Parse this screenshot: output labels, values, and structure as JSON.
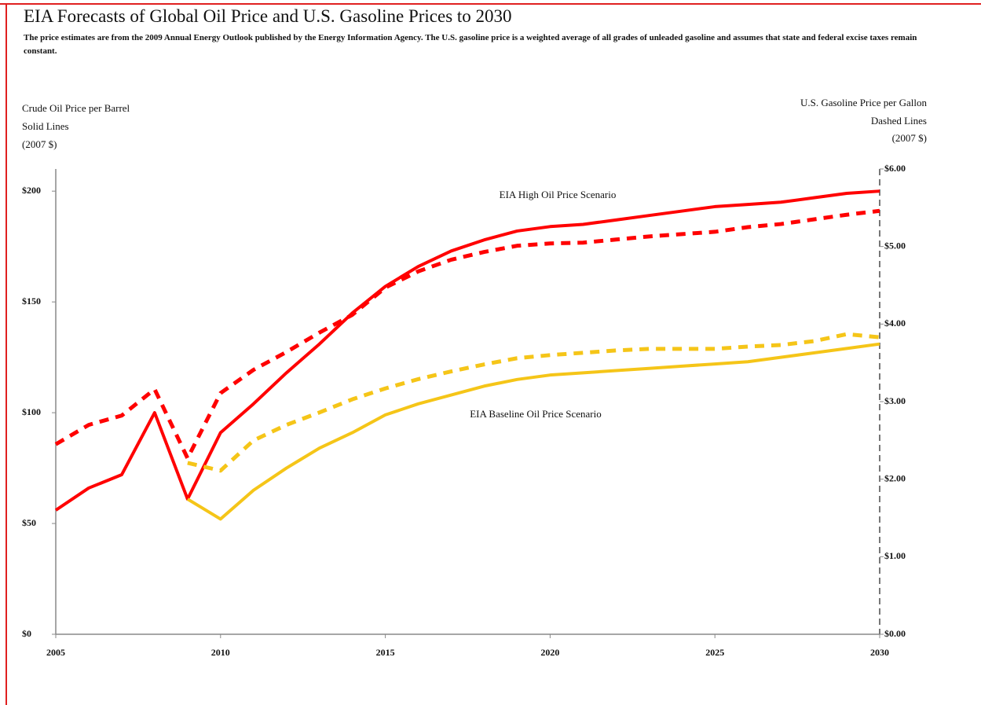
{
  "chart_data": {
    "type": "line",
    "title": "EIA Forecasts of Global Oil Price and U.S. Gasoline Prices to 2030",
    "subtitle": "The price estimates are from the 2009 Annual Energy Outlook published by the Energy Information Agency. The U.S. gasoline price is a weighted average of all grades of unleaded gasoline and assumes that state and federal excise taxes remain constant.",
    "y_label": [
      "Crude Oil Price per Barrel",
      "Solid Lines",
      "(2007 $)"
    ],
    "y2_label": [
      "U.S. Gasoline Price per Gallon",
      "Dashed Lines",
      "(2007 $)"
    ],
    "annotations": [
      "EIA High Oil Price Scenario",
      "EIA Baseline Oil Price Scenario"
    ],
    "x": [
      2005,
      2006,
      2007,
      2008,
      2009,
      2010,
      2011,
      2012,
      2013,
      2014,
      2015,
      2016,
      2017,
      2018,
      2019,
      2020,
      2021,
      2022,
      2023,
      2024,
      2025,
      2026,
      2027,
      2028,
      2029,
      2030
    ],
    "xlim": [
      2005,
      2030
    ],
    "xticks": [
      2005,
      2010,
      2015,
      2020,
      2025,
      2030
    ],
    "ylim": [
      0,
      210
    ],
    "yticks": [
      {
        "value": 0,
        "label": "$0"
      },
      {
        "value": 50,
        "label": "$50"
      },
      {
        "value": 100,
        "label": "$100"
      },
      {
        "value": 150,
        "label": "$150"
      },
      {
        "value": 200,
        "label": "$200"
      }
    ],
    "y2lim": [
      0,
      6
    ],
    "y2ticks": [
      {
        "value": 0,
        "label": "$0.00"
      },
      {
        "value": 1,
        "label": "$1.00"
      },
      {
        "value": 2,
        "label": "$2.00"
      },
      {
        "value": 3,
        "label": "$3.00"
      },
      {
        "value": 4,
        "label": "$4.00"
      },
      {
        "value": 5,
        "label": "$5.00"
      },
      {
        "value": 6,
        "label": "$6.00"
      }
    ],
    "series": [
      {
        "color": "#ff0000",
        "dashed": false,
        "values": [
          56,
          66,
          72,
          100,
          61,
          91,
          104,
          118,
          131,
          145,
          157,
          166,
          173,
          178,
          182,
          184,
          185,
          187,
          189,
          191,
          193,
          194,
          195,
          197,
          199,
          200
        ]
      },
      {
        "color": "#f5c518",
        "dashed": false,
        "values": [
          null,
          null,
          null,
          null,
          61,
          52,
          65,
          75,
          84,
          91,
          99,
          104,
          108,
          112,
          115,
          117,
          118,
          119,
          120,
          121,
          122,
          123,
          125,
          127,
          129,
          131
        ]
      },
      {
        "color": "#ff0000",
        "dashed": true,
        "axis": "y2",
        "values": [
          2.45,
          2.7,
          2.82,
          3.16,
          2.27,
          3.11,
          3.41,
          3.64,
          3.89,
          4.12,
          4.47,
          4.68,
          4.83,
          4.93,
          5.01,
          5.04,
          5.05,
          5.09,
          5.13,
          5.16,
          5.19,
          5.25,
          5.29,
          5.35,
          5.41,
          5.46
        ]
      },
      {
        "color": "#f5c518",
        "dashed": true,
        "axis": "y2",
        "values": [
          null,
          null,
          null,
          null,
          2.21,
          2.11,
          2.5,
          2.7,
          2.86,
          3.03,
          3.17,
          3.29,
          3.39,
          3.48,
          3.56,
          3.6,
          3.63,
          3.66,
          3.68,
          3.68,
          3.68,
          3.71,
          3.73,
          3.78,
          3.87,
          3.83
        ]
      }
    ]
  }
}
